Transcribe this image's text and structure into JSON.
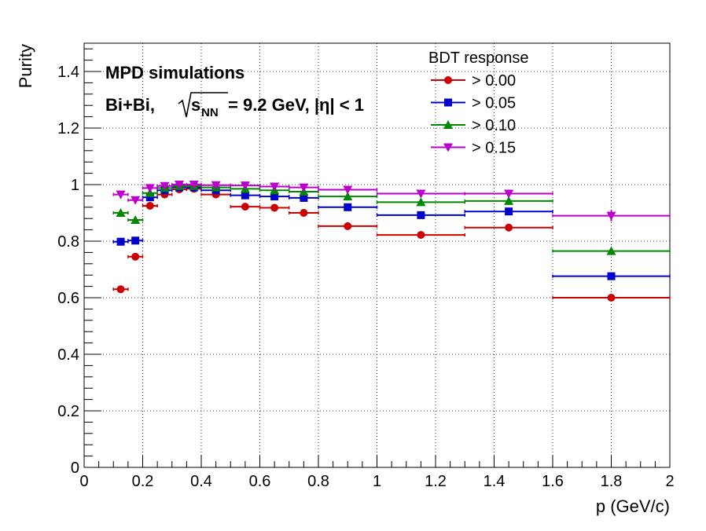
{
  "chart_data": {
    "type": "scatter",
    "title": "",
    "xlabel": "p (GeV/c)",
    "ylabel": "Purity",
    "xlim": [
      0,
      2
    ],
    "ylim": [
      0,
      1.5
    ],
    "grid": true,
    "x_ticks": [
      "0",
      "0.2",
      "0.4",
      "0.6",
      "0.8",
      "1",
      "1.2",
      "1.4",
      "1.6",
      "1.8",
      "2"
    ],
    "x_tick_values": [
      0,
      0.2,
      0.4,
      0.6,
      0.8,
      1,
      1.2,
      1.4,
      1.6,
      1.8,
      2
    ],
    "y_ticks": [
      "0",
      "0.2",
      "0.4",
      "0.6",
      "0.8",
      "1",
      "1.2",
      "1.4"
    ],
    "y_tick_values": [
      0,
      0.2,
      0.4,
      0.6,
      0.8,
      1,
      1.2,
      1.4
    ],
    "annotations": {
      "line1": "MPD simulations",
      "line2_prefix": "Bi+Bi,",
      "line2_sqrt": "s",
      "line2_sub": "NN",
      "line2_suffix": "= 9.2 GeV, |η| < 1"
    },
    "legend": {
      "title": "BDT response",
      "placement": "top-right"
    },
    "bins": {
      "x": [
        0.125,
        0.175,
        0.225,
        0.275,
        0.325,
        0.375,
        0.45,
        0.55,
        0.65,
        0.75,
        0.9,
        1.15,
        1.45,
        1.8
      ],
      "xerr": [
        0.025,
        0.025,
        0.025,
        0.025,
        0.025,
        0.025,
        0.05,
        0.05,
        0.05,
        0.05,
        0.1,
        0.15,
        0.15,
        0.2
      ]
    },
    "series": [
      {
        "name": "> 0.00",
        "color": "#cc0000",
        "marker": "circle",
        "values": [
          0.63,
          0.745,
          0.925,
          0.965,
          0.983,
          0.985,
          0.965,
          0.922,
          0.918,
          0.9,
          0.853,
          0.822,
          0.848,
          0.6
        ],
        "yerr": [
          0.008,
          0.008,
          0.006,
          0.005,
          0.004,
          0.004,
          0.005,
          0.006,
          0.006,
          0.007,
          0.008,
          0.008,
          0.009,
          0.012
        ]
      },
      {
        "name": "> 0.05",
        "color": "#0000cc",
        "marker": "square",
        "values": [
          0.798,
          0.802,
          0.955,
          0.98,
          0.99,
          0.99,
          0.98,
          0.962,
          0.958,
          0.953,
          0.92,
          0.892,
          0.905,
          0.676
        ],
        "yerr": [
          0.008,
          0.008,
          0.006,
          0.005,
          0.004,
          0.004,
          0.005,
          0.006,
          0.006,
          0.007,
          0.008,
          0.008,
          0.009,
          0.012
        ]
      },
      {
        "name": "> 0.10",
        "color": "#008800",
        "marker": "triangle-up",
        "values": [
          0.9,
          0.875,
          0.97,
          0.988,
          0.995,
          0.995,
          0.99,
          0.985,
          0.98,
          0.975,
          0.958,
          0.938,
          0.942,
          0.765
        ],
        "yerr": [
          0.008,
          0.008,
          0.006,
          0.005,
          0.004,
          0.004,
          0.005,
          0.006,
          0.006,
          0.007,
          0.008,
          0.008,
          0.01,
          0.014
        ]
      },
      {
        "name": "> 0.15",
        "color": "#bb00cc",
        "marker": "triangle-down",
        "values": [
          0.965,
          0.945,
          0.988,
          0.995,
          1.0,
          1.0,
          0.998,
          0.997,
          0.993,
          0.99,
          0.982,
          0.968,
          0.968,
          0.89
        ],
        "yerr": [
          0.008,
          0.008,
          0.005,
          0.004,
          0.003,
          0.003,
          0.004,
          0.005,
          0.005,
          0.006,
          0.008,
          0.009,
          0.01,
          0.02
        ]
      }
    ]
  }
}
